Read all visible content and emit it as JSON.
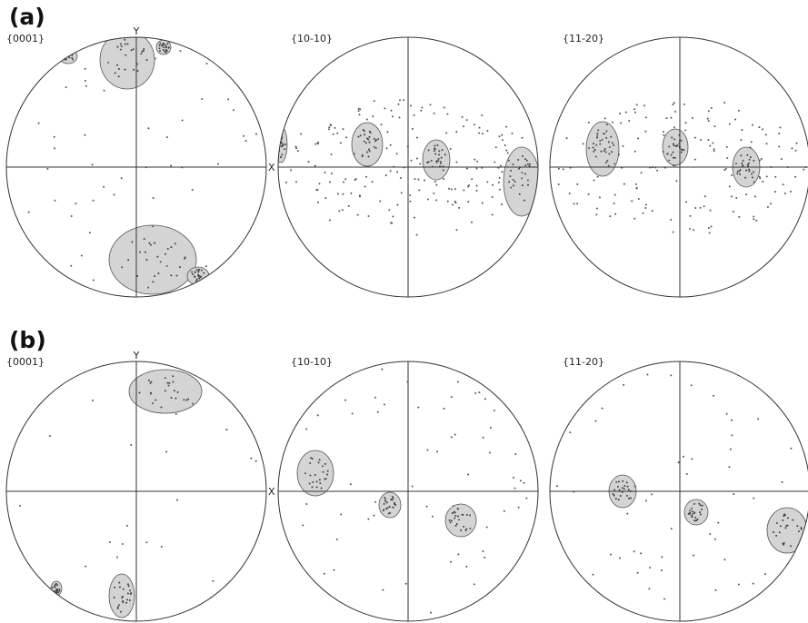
{
  "panels": [
    {
      "label": "(a)",
      "figures": [
        {
          "title": "{0001}",
          "y_label": "Y",
          "x_label": "X"
        },
        {
          "title": "{10-10}"
        },
        {
          "title": "{11-20}"
        }
      ]
    },
    {
      "label": "(b)",
      "figures": [
        {
          "title": "{0001}",
          "y_label": "Y",
          "x_label": "X"
        },
        {
          "title": "{10-10}"
        },
        {
          "title": "{11-20}"
        }
      ]
    }
  ]
}
